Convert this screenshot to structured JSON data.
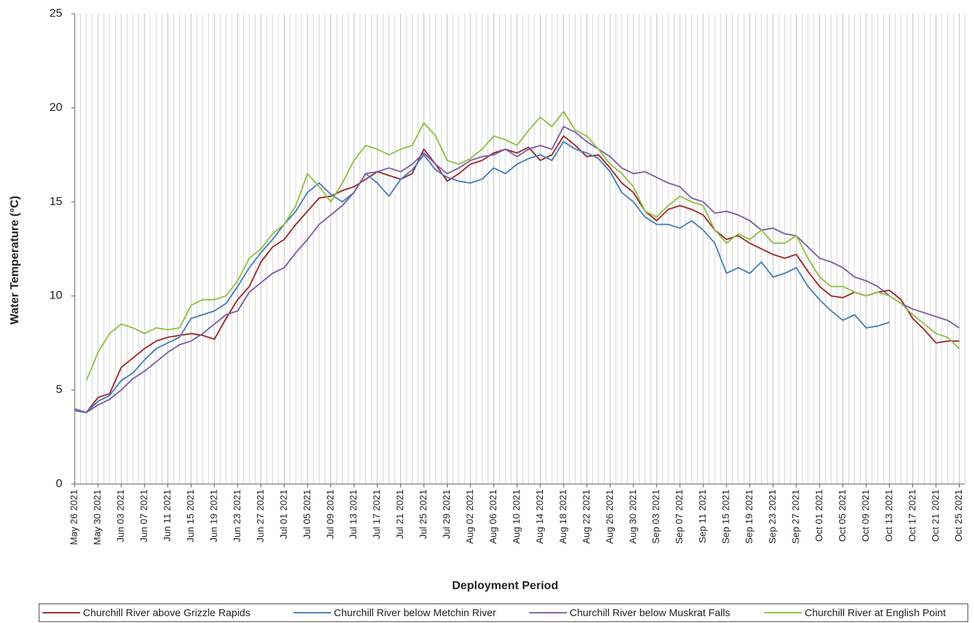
{
  "chart_data": {
    "type": "line",
    "ylabel": "Water Temperature (°C)",
    "xlabel": "Deployment Period",
    "xlim": [
      "May 26 2021",
      "Oct 26 2021"
    ],
    "xticks": [
      "May 26 2021",
      "May 30 2021",
      "Jun 03 2021",
      "Jun 07 2021",
      "Jun 11 2021",
      "Jun 15 2021",
      "Jun 19 2021",
      "Jun 23 2021",
      "Jun 27 2021",
      "Jul 01 2021",
      "Jul 05 2021",
      "Jul 09 2021",
      "Jul 13 2021",
      "Jul 17 2021",
      "Jul 21 2021",
      "Jul 25 2021",
      "Jul 29 2021",
      "Aug 02 2021",
      "Aug 06 2021",
      "Aug 10 2021",
      "Aug 14 2021",
      "Aug 18 2021",
      "Aug 22 2021",
      "Aug 26 2021",
      "Aug 30 2021",
      "Sep 03 2021",
      "Sep 07 2021",
      "Sep 11 2021",
      "Sep 15 2021",
      "Sep 19 2021",
      "Sep 23 2021",
      "Sep 27 2021",
      "Oct 01 2021",
      "Oct 05 2021",
      "Oct 09 2021",
      "Oct 13 2021",
      "Oct 17 2021",
      "Oct 21 2021",
      "Oct 25 2021"
    ],
    "ylim": [
      0,
      25
    ],
    "yticks": [
      0,
      5,
      10,
      15,
      20,
      25
    ],
    "xgrid": true,
    "legend": "bottom",
    "x": [
      "May 26 2021",
      "May 28 2021",
      "May 30 2021",
      "Jun 01 2021",
      "Jun 03 2021",
      "Jun 05 2021",
      "Jun 07 2021",
      "Jun 09 2021",
      "Jun 11 2021",
      "Jun 13 2021",
      "Jun 15 2021",
      "Jun 17 2021",
      "Jun 19 2021",
      "Jun 21 2021",
      "Jun 23 2021",
      "Jun 25 2021",
      "Jun 27 2021",
      "Jun 29 2021",
      "Jul 01 2021",
      "Jul 03 2021",
      "Jul 05 2021",
      "Jul 07 2021",
      "Jul 09 2021",
      "Jul 11 2021",
      "Jul 13 2021",
      "Jul 15 2021",
      "Jul 17 2021",
      "Jul 19 2021",
      "Jul 21 2021",
      "Jul 23 2021",
      "Jul 25 2021",
      "Jul 27 2021",
      "Jul 29 2021",
      "Jul 31 2021",
      "Aug 02 2021",
      "Aug 04 2021",
      "Aug 06 2021",
      "Aug 08 2021",
      "Aug 10 2021",
      "Aug 12 2021",
      "Aug 14 2021",
      "Aug 16 2021",
      "Aug 18 2021",
      "Aug 20 2021",
      "Aug 22 2021",
      "Aug 24 2021",
      "Aug 26 2021",
      "Aug 28 2021",
      "Aug 30 2021",
      "Sep 01 2021",
      "Sep 03 2021",
      "Sep 05 2021",
      "Sep 07 2021",
      "Sep 09 2021",
      "Sep 11 2021",
      "Sep 13 2021",
      "Sep 15 2021",
      "Sep 17 2021",
      "Sep 19 2021",
      "Sep 21 2021",
      "Sep 23 2021",
      "Sep 25 2021",
      "Sep 27 2021",
      "Sep 29 2021",
      "Oct 01 2021",
      "Oct 03 2021",
      "Oct 05 2021",
      "Oct 07 2021",
      "Oct 09 2021",
      "Oct 11 2021",
      "Oct 13 2021",
      "Oct 15 2021",
      "Oct 17 2021",
      "Oct 19 2021",
      "Oct 21 2021",
      "Oct 23 2021",
      "Oct 25 2021"
    ],
    "series": [
      {
        "name": "Churchill River above Grizzle Rapids",
        "color": "#9e2a2b",
        "values": [
          3.9,
          3.8,
          4.6,
          4.8,
          6.2,
          6.7,
          7.2,
          7.6,
          7.8,
          7.9,
          8.0,
          7.9,
          7.7,
          8.8,
          9.8,
          10.5,
          11.8,
          12.6,
          13.0,
          13.8,
          14.5,
          15.2,
          15.3,
          15.6,
          15.8,
          16.2,
          16.6,
          16.4,
          16.2,
          16.5,
          17.8,
          17.0,
          16.1,
          16.5,
          17.0,
          17.2,
          17.6,
          17.8,
          17.6,
          17.9,
          17.2,
          17.5,
          18.5,
          18.0,
          17.4,
          17.5,
          16.8,
          16.0,
          15.5,
          14.5,
          14.0,
          14.6,
          14.8,
          14.6,
          14.3,
          13.5,
          13.0,
          13.2,
          12.8,
          12.5,
          12.2,
          12.0,
          12.2,
          11.3,
          10.5,
          10.0,
          9.9,
          10.2,
          10.0,
          10.2,
          10.3,
          9.8,
          8.8,
          8.2,
          7.5,
          7.6,
          7.6
        ]
      },
      {
        "name": "Churchill River below Metchin River",
        "color": "#4a7ebb",
        "values": [
          3.9,
          3.8,
          4.4,
          4.7,
          5.5,
          5.9,
          6.6,
          7.2,
          7.5,
          7.8,
          8.8,
          9.0,
          9.2,
          9.6,
          10.5,
          11.5,
          12.3,
          13.0,
          13.8,
          14.5,
          15.5,
          16.0,
          15.4,
          15.0,
          15.5,
          16.5,
          16.0,
          15.3,
          16.2,
          16.7,
          17.5,
          16.7,
          16.3,
          16.1,
          16.0,
          16.2,
          16.8,
          16.5,
          17.0,
          17.3,
          17.5,
          17.2,
          18.2,
          17.8,
          17.6,
          17.3,
          16.6,
          15.5,
          15.0,
          14.2,
          13.8,
          13.8,
          13.6,
          14.0,
          13.5,
          12.8,
          11.2,
          11.5,
          11.2,
          11.8,
          11.0,
          11.2,
          11.5,
          10.5,
          9.8,
          9.2,
          8.7,
          9.0,
          8.3,
          8.4,
          8.6,
          null,
          null,
          null,
          null,
          null,
          null
        ]
      },
      {
        "name": "Churchill River below Muskrat Falls",
        "color": "#7e5fa8",
        "values": [
          4.0,
          3.8,
          4.2,
          4.5,
          5.0,
          5.6,
          6.0,
          6.5,
          7.0,
          7.4,
          7.6,
          8.0,
          8.5,
          9.0,
          9.2,
          10.2,
          10.7,
          11.2,
          11.5,
          12.3,
          13.0,
          13.8,
          14.3,
          14.8,
          15.5,
          16.5,
          16.6,
          16.8,
          16.6,
          17.0,
          17.6,
          17.0,
          16.5,
          16.8,
          17.2,
          17.4,
          17.5,
          17.8,
          17.4,
          17.8,
          18.0,
          17.8,
          19.0,
          18.7,
          18.2,
          17.8,
          17.4,
          16.8,
          16.5,
          16.6,
          16.3,
          16.0,
          15.8,
          15.2,
          15.0,
          14.4,
          14.5,
          14.3,
          14.0,
          13.5,
          13.6,
          13.3,
          13.2,
          12.6,
          12.0,
          11.8,
          11.5,
          11.0,
          10.8,
          10.5,
          10.0,
          9.6,
          9.3,
          9.1,
          8.9,
          8.7,
          8.3
        ]
      },
      {
        "name": "Churchill River at English Point",
        "color": "#92c047",
        "values": [
          null,
          5.5,
          7.0,
          8.0,
          8.5,
          8.3,
          8.0,
          8.3,
          8.2,
          8.3,
          9.5,
          9.8,
          9.8,
          10.0,
          10.8,
          12.0,
          12.5,
          13.3,
          13.8,
          14.8,
          16.5,
          15.8,
          15.0,
          16.0,
          17.2,
          18.0,
          17.8,
          17.5,
          17.8,
          18.0,
          19.2,
          18.5,
          17.2,
          17.0,
          17.3,
          17.8,
          18.5,
          18.3,
          18.0,
          18.8,
          19.5,
          19.0,
          19.8,
          18.8,
          18.5,
          17.8,
          17.0,
          16.5,
          15.8,
          14.5,
          14.2,
          14.8,
          15.3,
          15.0,
          14.8,
          13.5,
          12.8,
          13.3,
          13.0,
          13.5,
          12.8,
          12.8,
          13.2,
          12.0,
          11.0,
          10.5,
          10.5,
          10.2,
          10.0,
          10.2,
          10.0,
          9.6,
          9.0,
          8.5,
          8.0,
          7.8,
          7.2
        ]
      }
    ]
  }
}
